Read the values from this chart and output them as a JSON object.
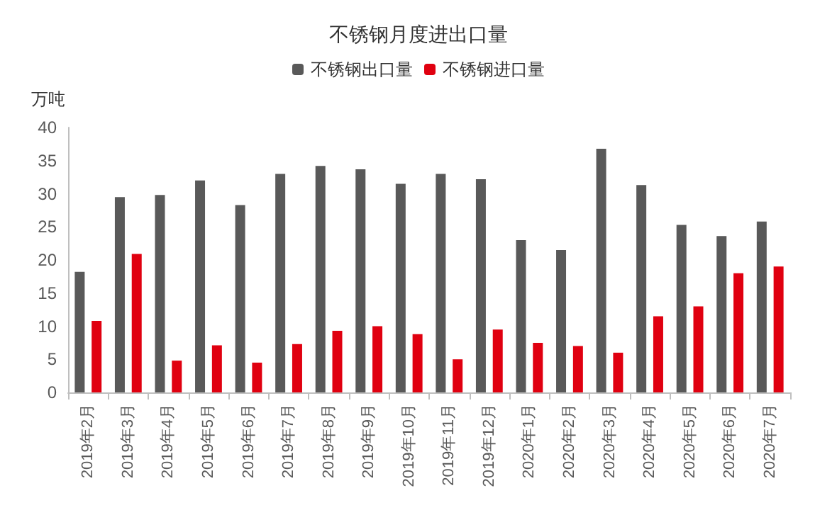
{
  "chart_data": {
    "type": "bar",
    "title": "不锈钢月度进出口量",
    "ylabel": "万吨",
    "categories": [
      "2019年2月",
      "2019年3月",
      "2019年4月",
      "2019年5月",
      "2019年6月",
      "2019年7月",
      "2019年8月",
      "2019年9月",
      "2019年10月",
      "2019年11月",
      "2019年12月",
      "2020年1月",
      "2020年2月",
      "2020年3月",
      "2020年4月",
      "2020年5月",
      "2020年6月",
      "2020年7月"
    ],
    "series": [
      {
        "name": "不锈钢出口量",
        "color": "#595959",
        "values": [
          18.2,
          29.5,
          29.8,
          32,
          28.3,
          33,
          34.2,
          33.7,
          31.5,
          33,
          32.2,
          23,
          21.5,
          36.8,
          31.3,
          25.3,
          23.6,
          25.8
        ]
      },
      {
        "name": "不锈钢进口量",
        "color": "#e00010",
        "values": [
          10.8,
          20.9,
          4.8,
          7.1,
          4.5,
          7.3,
          9.3,
          10,
          8.8,
          5,
          9.5,
          7.5,
          7,
          6,
          11.5,
          13,
          18,
          19
        ]
      }
    ],
    "ylim": [
      0,
      40
    ],
    "yticks": [
      0,
      5,
      10,
      15,
      20,
      25,
      30,
      35,
      40
    ],
    "grid": false,
    "legend": "top"
  }
}
